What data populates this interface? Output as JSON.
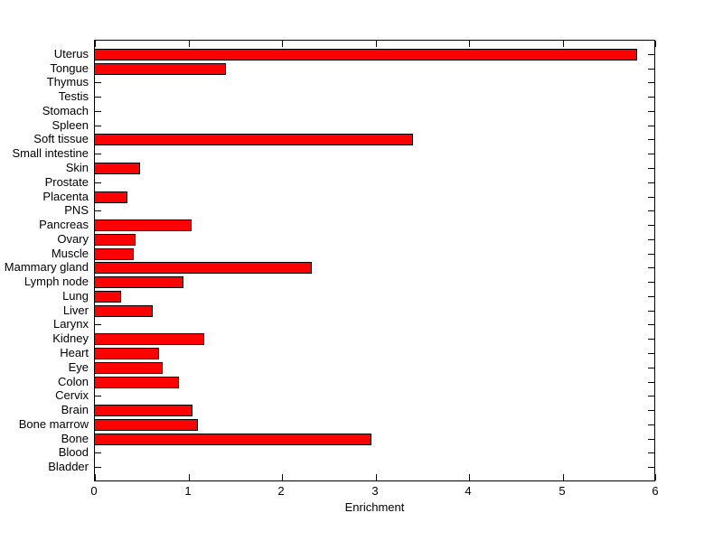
{
  "chart_data": {
    "type": "bar",
    "orientation": "horizontal",
    "title": "",
    "xlabel": "Enrichment",
    "ylabel": "",
    "xlim": [
      0,
      6
    ],
    "xticks": [
      0,
      1,
      2,
      3,
      4,
      5,
      6
    ],
    "grid": false,
    "legend": null,
    "bar_fill_color": "#ff0000",
    "bar_edge_color": "#000000",
    "axis_color": "#000000",
    "background_color": "#ffffff",
    "categories_top_to_bottom": [
      "Uterus",
      "Tongue",
      "Thymus",
      "Testis",
      "Stomach",
      "Spleen",
      "Soft tissue",
      "Small intestine",
      "Skin",
      "Prostate",
      "Placenta",
      "PNS",
      "Pancreas",
      "Ovary",
      "Muscle",
      "Mammary gland",
      "Lymph node",
      "Lung",
      "Liver",
      "Larynx",
      "Kidney",
      "Heart",
      "Eye",
      "Colon",
      "Cervix",
      "Brain",
      "Bone marrow",
      "Bone",
      "Blood",
      "Bladder"
    ],
    "values": [
      5.8,
      1.4,
      0,
      0,
      0,
      0,
      3.4,
      0,
      0.48,
      0,
      0.35,
      0,
      1.03,
      0.43,
      0.42,
      2.32,
      0.95,
      0.28,
      0.62,
      0,
      1.17,
      0.69,
      0.72,
      0.9,
      0,
      1.04,
      1.1,
      2.96,
      0,
      0
    ]
  }
}
